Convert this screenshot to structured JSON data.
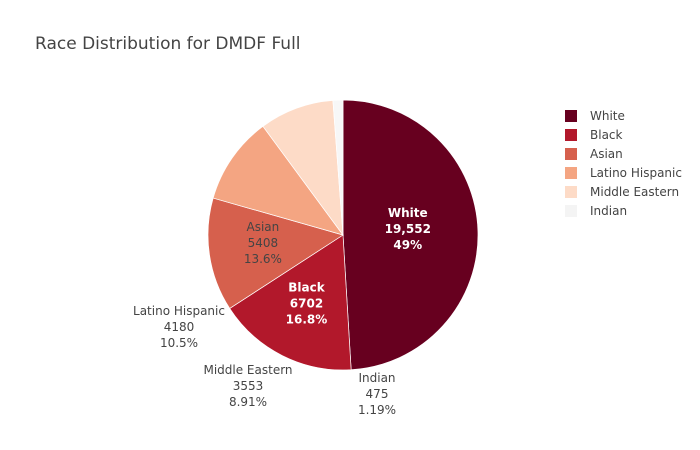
{
  "chart_data": {
    "type": "pie",
    "title": "Race Distribution for DMDF Full",
    "legend_position": "right",
    "slices": [
      {
        "label": "White",
        "value": 19552,
        "value_text": "19,552",
        "percent_text": "49%",
        "color": "#67001f",
        "label_position": "inside",
        "text_color": "#ffffff"
      },
      {
        "label": "Black",
        "value": 6702,
        "value_text": "6702",
        "percent_text": "16.8%",
        "color": "#b2182b",
        "label_position": "inside",
        "text_color": "#ffffff"
      },
      {
        "label": "Asian",
        "value": 5408,
        "value_text": "5408",
        "percent_text": "13.6%",
        "color": "#d6604d",
        "label_position": "inside",
        "text_color": "#444444"
      },
      {
        "label": "Latino Hispanic",
        "value": 4180,
        "value_text": "4180",
        "percent_text": "10.5%",
        "color": "#f4a582",
        "label_position": "outside",
        "text_color": "#444444"
      },
      {
        "label": "Middle Eastern",
        "value": 3553,
        "value_text": "3553",
        "percent_text": "8.91%",
        "color": "#fddbc7",
        "label_position": "outside",
        "text_color": "#444444"
      },
      {
        "label": "Indian",
        "value": 475,
        "value_text": "475",
        "percent_text": "1.19%",
        "color": "#f7f7f7",
        "label_position": "outside",
        "text_color": "#444444"
      }
    ]
  }
}
